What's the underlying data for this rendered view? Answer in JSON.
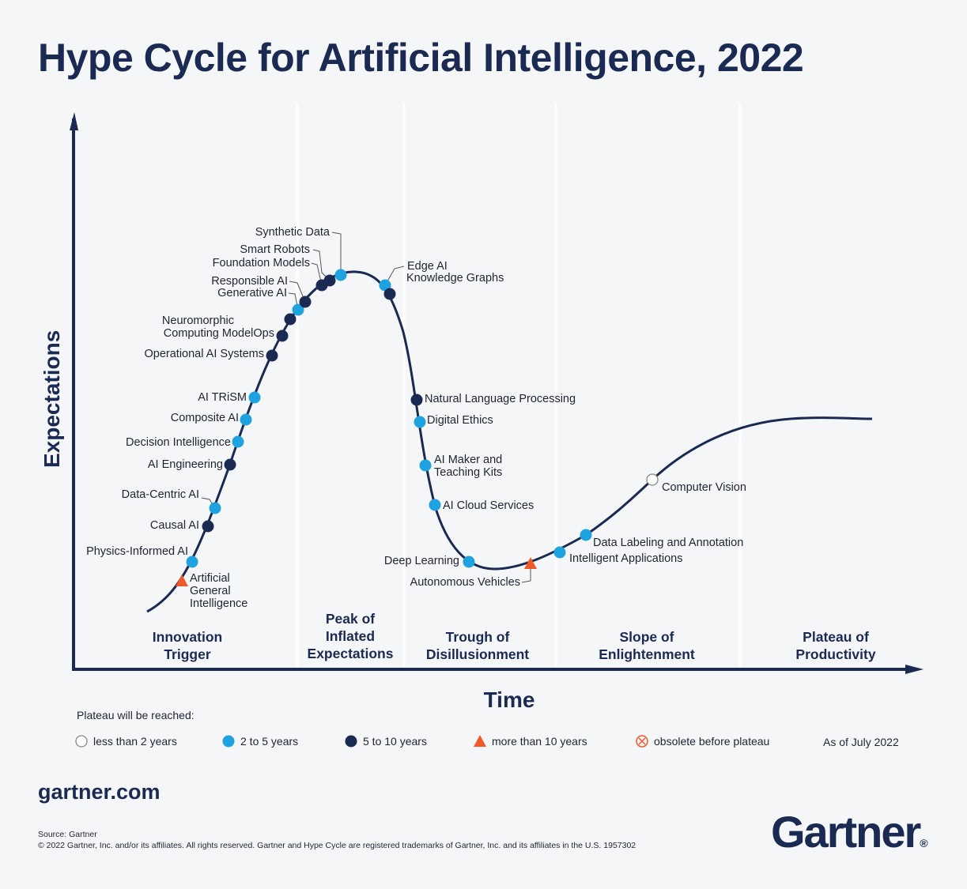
{
  "title": "Hype Cycle for Artificial Intelligence, 2022",
  "axes": {
    "y": "Expectations",
    "x": "Time"
  },
  "phases": [
    {
      "lines": [
        "Innovation",
        "Trigger"
      ]
    },
    {
      "lines": [
        "Peak of",
        "Inflated",
        "Expectations"
      ]
    },
    {
      "lines": [
        "Trough of",
        "Disillusionment"
      ]
    },
    {
      "lines": [
        "Slope of",
        "Enlightenment"
      ]
    },
    {
      "lines": [
        "Plateau of",
        "Productivity"
      ]
    }
  ],
  "colors": {
    "navy": "#1b2a52",
    "light_blue": "#1ea3e0",
    "orange": "#f05a28",
    "background": "#f5f6f8"
  },
  "technologies": [
    {
      "lines": [
        "Artificial",
        "General",
        "Intelligence"
      ],
      "plateau": "more than 10 years"
    },
    {
      "lines": [
        "Physics-Informed AI"
      ],
      "plateau": "2 to 5 years"
    },
    {
      "lines": [
        "Causal AI"
      ],
      "plateau": "5 to 10 years"
    },
    {
      "lines": [
        "Data-Centric AI"
      ],
      "plateau": "2 to 5 years"
    },
    {
      "lines": [
        "AI Engineering"
      ],
      "plateau": "5 to 10 years"
    },
    {
      "lines": [
        "Decision Intelligence"
      ],
      "plateau": "2 to 5 years"
    },
    {
      "lines": [
        "Composite AI"
      ],
      "plateau": "2 to 5 years"
    },
    {
      "lines": [
        "AI TRiSM"
      ],
      "plateau": "2 to 5 years"
    },
    {
      "lines": [
        "Operational AI Systems"
      ],
      "plateau": "5 to 10 years"
    },
    {
      "lines": [
        "Computing ModelOps"
      ],
      "plateau": "5 to 10 years"
    },
    {
      "lines": [
        "Neuromorphic"
      ],
      "plateau": "5 to 10 years"
    },
    {
      "lines": [
        "Generative AI"
      ],
      "plateau": "2 to 5 years"
    },
    {
      "lines": [
        "Responsible AI"
      ],
      "plateau": "5 to 10 years"
    },
    {
      "lines": [
        "Foundation Models"
      ],
      "plateau": "5 to 10 years"
    },
    {
      "lines": [
        "Smart Robots"
      ],
      "plateau": "5 to 10 years"
    },
    {
      "lines": [
        "Synthetic Data"
      ],
      "plateau": "2 to 5 years"
    },
    {
      "lines": [
        "Edge AI"
      ],
      "plateau": "2 to 5 years"
    },
    {
      "lines": [
        "Knowledge Graphs"
      ],
      "plateau": "5 to 10 years"
    },
    {
      "lines": [
        "Natural Language Processing"
      ],
      "plateau": "5 to 10 years"
    },
    {
      "lines": [
        "Digital Ethics"
      ],
      "plateau": "2 to 5 years"
    },
    {
      "lines": [
        "AI Maker and",
        "Teaching Kits"
      ],
      "plateau": "2 to 5 years"
    },
    {
      "lines": [
        "AI Cloud Services"
      ],
      "plateau": "2 to 5 years"
    },
    {
      "lines": [
        "Deep Learning"
      ],
      "plateau": "2 to 5 years"
    },
    {
      "lines": [
        "Autonomous Vehicles"
      ],
      "plateau": "more than 10 years"
    },
    {
      "lines": [
        "Intelligent Applications"
      ],
      "plateau": "2 to 5 years"
    },
    {
      "lines": [
        "Data Labeling and Annotation"
      ],
      "plateau": "2 to 5 years"
    },
    {
      "lines": [
        "Computer Vision"
      ],
      "plateau": "less than 2 years"
    }
  ],
  "legend": {
    "heading": "Plateau will be reached:",
    "items": [
      {
        "label": "less than 2 years",
        "icon": "hollow-circle"
      },
      {
        "label": "2 to 5 years",
        "icon": "light-blue-circle"
      },
      {
        "label": "5 to 10 years",
        "icon": "navy-circle"
      },
      {
        "label": "more than 10 years",
        "icon": "orange-triangle"
      },
      {
        "label": "obsolete before plateau",
        "icon": "crossed-circle"
      }
    ],
    "as_of": "As of July 2022"
  },
  "footer": {
    "site": "gartner.com",
    "source": "Source: Gartner",
    "copyright": "© 2022 Gartner, Inc. and/or its affiliates. All rights reserved. Gartner and Hype Cycle are registered trademarks of Gartner, Inc. and its affiliates in the U.S. 1957302",
    "logo": "Gartner®"
  }
}
